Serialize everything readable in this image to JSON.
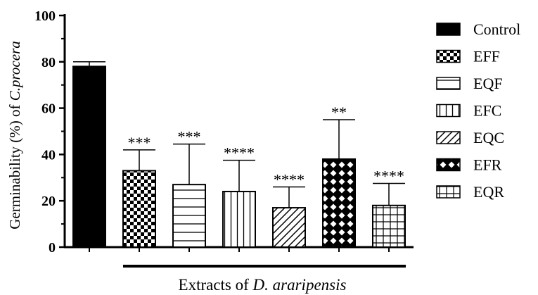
{
  "chart_data": {
    "type": "bar",
    "ylabel_prefix": "Germinability (%) of ",
    "ylabel_italic": "C.procera",
    "xlabel_prefix": "Extracts of ",
    "xlabel_italic": "D. araripensis",
    "ylim": [
      0,
      100
    ],
    "yticks": [
      "0",
      "20",
      "40",
      "60",
      "80",
      "100"
    ],
    "categories": [
      "Control",
      "EFF",
      "EQF",
      "EFC",
      "EQC",
      "EFR",
      "EQR"
    ],
    "values": [
      78,
      33,
      27,
      24,
      17,
      38,
      18
    ],
    "error_upper": [
      80,
      42,
      44.5,
      37.5,
      26,
      55,
      27.5
    ],
    "significance": [
      "",
      "***",
      "***",
      "****",
      "****",
      "**",
      "****"
    ],
    "patterns": [
      "solid",
      "checker",
      "horizontal",
      "vertical",
      "diagonal",
      "cross",
      "grid"
    ],
    "legend_position": "right",
    "colors": {
      "bar_fill": "#000000",
      "background": "#ffffff"
    }
  }
}
